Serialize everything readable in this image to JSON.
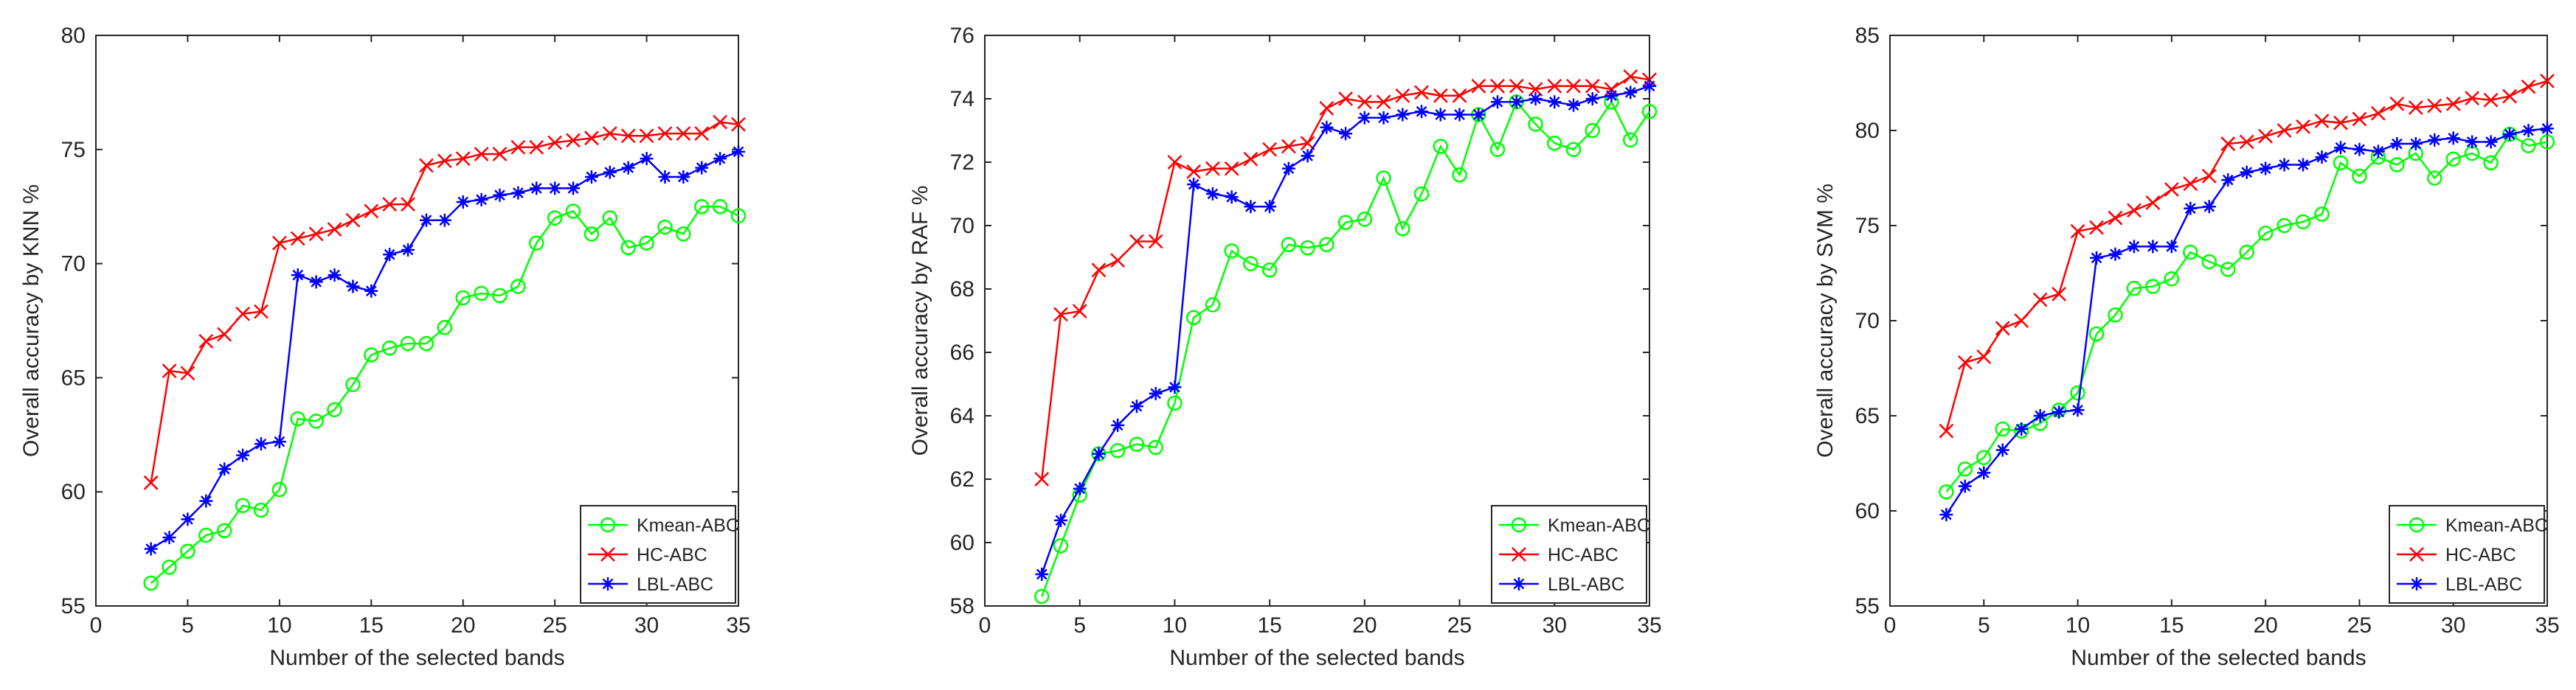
{
  "chart_data": [
    {
      "type": "line",
      "xlabel": "Number of the selected bands",
      "ylabel": "Overall accuracy by KNN %",
      "xlim": [
        0,
        35
      ],
      "ylim": [
        55,
        80
      ],
      "xticks": [
        0,
        5,
        10,
        15,
        20,
        25,
        30,
        35
      ],
      "yticks": [
        55,
        60,
        65,
        70,
        75,
        80
      ],
      "legend_position": "bottom-right",
      "x": [
        3,
        4,
        5,
        6,
        7,
        8,
        9,
        10,
        11,
        12,
        13,
        14,
        15,
        16,
        17,
        18,
        19,
        20,
        21,
        22,
        23,
        24,
        25,
        26,
        27,
        28,
        29,
        30,
        31,
        32,
        33,
        34,
        35
      ],
      "series": [
        {
          "name": "Kmean-ABC",
          "color": "#00ff00",
          "marker": "circle",
          "values": [
            56.0,
            56.7,
            57.4,
            58.1,
            58.3,
            59.4,
            59.2,
            60.1,
            63.2,
            63.1,
            63.6,
            64.7,
            66.0,
            66.3,
            66.5,
            66.5,
            67.2,
            68.5,
            68.7,
            68.6,
            69.0,
            70.9,
            72.0,
            72.3,
            71.3,
            72.0,
            70.7,
            70.9,
            71.6,
            71.3,
            72.5,
            72.5,
            72.1
          ]
        },
        {
          "name": "HC-ABC",
          "color": "#ff0000",
          "marker": "x",
          "values": [
            60.4,
            65.3,
            65.2,
            66.6,
            66.9,
            67.8,
            67.9,
            70.9,
            71.1,
            71.3,
            71.5,
            71.9,
            72.3,
            72.6,
            72.6,
            74.3,
            74.5,
            74.6,
            74.8,
            74.8,
            75.1,
            75.1,
            75.3,
            75.4,
            75.5,
            75.7,
            75.6,
            75.6,
            75.7,
            75.7,
            75.7,
            76.2,
            76.1
          ]
        },
        {
          "name": "LBL-ABC",
          "color": "#0000ff",
          "marker": "asterisk",
          "values": [
            57.5,
            58.0,
            58.8,
            59.6,
            61.0,
            61.6,
            62.1,
            62.2,
            69.5,
            69.2,
            69.5,
            69.0,
            68.8,
            70.4,
            70.6,
            71.9,
            71.9,
            72.7,
            72.8,
            73.0,
            73.1,
            73.3,
            73.3,
            73.3,
            73.8,
            74.0,
            74.2,
            74.6,
            73.8,
            73.8,
            74.2,
            74.6,
            74.9
          ]
        }
      ]
    },
    {
      "type": "line",
      "xlabel": "Number of the selected bands",
      "ylabel": "Overall accuracy by RAF %",
      "xlim": [
        0,
        35
      ],
      "ylim": [
        58,
        76
      ],
      "xticks": [
        0,
        5,
        10,
        15,
        20,
        25,
        30,
        35
      ],
      "yticks": [
        58,
        60,
        62,
        64,
        66,
        68,
        70,
        72,
        74,
        76
      ],
      "legend_position": "bottom-right",
      "x": [
        3,
        4,
        5,
        6,
        7,
        8,
        9,
        10,
        11,
        12,
        13,
        14,
        15,
        16,
        17,
        18,
        19,
        20,
        21,
        22,
        23,
        24,
        25,
        26,
        27,
        28,
        29,
        30,
        31,
        32,
        33,
        34,
        35
      ],
      "series": [
        {
          "name": "Kmean-ABC",
          "color": "#00ff00",
          "marker": "circle",
          "values": [
            58.3,
            59.9,
            61.5,
            62.8,
            62.9,
            63.1,
            63.0,
            64.4,
            67.1,
            67.5,
            69.2,
            68.8,
            68.6,
            69.4,
            69.3,
            69.4,
            70.1,
            70.2,
            71.5,
            69.9,
            71.0,
            72.5,
            71.6,
            73.5,
            72.4,
            73.9,
            73.2,
            72.6,
            72.4,
            73.0,
            73.9,
            72.7,
            73.6
          ]
        },
        {
          "name": "HC-ABC",
          "color": "#ff0000",
          "marker": "x",
          "values": [
            62.0,
            67.2,
            67.3,
            68.6,
            68.9,
            69.5,
            69.5,
            72.0,
            71.7,
            71.8,
            71.8,
            72.1,
            72.4,
            72.5,
            72.6,
            73.7,
            74.0,
            73.9,
            73.9,
            74.1,
            74.2,
            74.1,
            74.1,
            74.4,
            74.4,
            74.4,
            74.3,
            74.4,
            74.4,
            74.4,
            74.3,
            74.7,
            74.6
          ]
        },
        {
          "name": "LBL-ABC",
          "color": "#0000ff",
          "marker": "asterisk",
          "values": [
            59.0,
            60.7,
            61.7,
            62.8,
            63.7,
            64.3,
            64.7,
            64.9,
            71.3,
            71.0,
            70.9,
            70.6,
            70.6,
            71.8,
            72.2,
            73.1,
            72.9,
            73.4,
            73.4,
            73.5,
            73.6,
            73.5,
            73.5,
            73.5,
            73.9,
            73.9,
            74.0,
            73.9,
            73.8,
            74.0,
            74.1,
            74.2,
            74.4
          ]
        }
      ]
    },
    {
      "type": "line",
      "xlabel": "Number of the selected bands",
      "ylabel": "Overall accuracy by SVM %",
      "xlim": [
        0,
        35
      ],
      "ylim": [
        55,
        85
      ],
      "xticks": [
        0,
        5,
        10,
        15,
        20,
        25,
        30,
        35
      ],
      "yticks": [
        55,
        60,
        65,
        70,
        75,
        80,
        85
      ],
      "legend_position": "bottom-right",
      "x": [
        3,
        4,
        5,
        6,
        7,
        8,
        9,
        10,
        11,
        12,
        13,
        14,
        15,
        16,
        17,
        18,
        19,
        20,
        21,
        22,
        23,
        24,
        25,
        26,
        27,
        28,
        29,
        30,
        31,
        32,
        33,
        34,
        35
      ],
      "series": [
        {
          "name": "Kmean-ABC",
          "color": "#00ff00",
          "marker": "circle",
          "values": [
            61.0,
            62.2,
            62.8,
            64.3,
            64.2,
            64.6,
            65.3,
            66.2,
            69.3,
            70.3,
            71.7,
            71.8,
            72.2,
            73.6,
            73.1,
            72.7,
            73.6,
            74.6,
            75.0,
            75.2,
            75.6,
            78.3,
            77.6,
            78.6,
            78.2,
            78.8,
            77.5,
            78.5,
            78.8,
            78.3,
            79.8,
            79.2,
            79.4
          ]
        },
        {
          "name": "HC-ABC",
          "color": "#ff0000",
          "marker": "x",
          "values": [
            64.2,
            67.8,
            68.1,
            69.6,
            70.0,
            71.1,
            71.4,
            74.7,
            74.9,
            75.4,
            75.8,
            76.2,
            76.9,
            77.2,
            77.6,
            79.3,
            79.4,
            79.7,
            80.0,
            80.2,
            80.5,
            80.4,
            80.6,
            80.9,
            81.4,
            81.2,
            81.3,
            81.4,
            81.7,
            81.6,
            81.8,
            82.3,
            82.6
          ]
        },
        {
          "name": "LBL-ABC",
          "color": "#0000ff",
          "marker": "asterisk",
          "values": [
            59.8,
            61.3,
            62.0,
            63.2,
            64.3,
            65.0,
            65.2,
            65.3,
            73.3,
            73.5,
            73.9,
            73.9,
            73.9,
            75.9,
            76.0,
            77.4,
            77.8,
            78.0,
            78.2,
            78.2,
            78.6,
            79.1,
            79.0,
            78.9,
            79.3,
            79.3,
            79.5,
            79.6,
            79.4,
            79.4,
            79.8,
            80.0,
            80.1
          ]
        }
      ]
    }
  ]
}
